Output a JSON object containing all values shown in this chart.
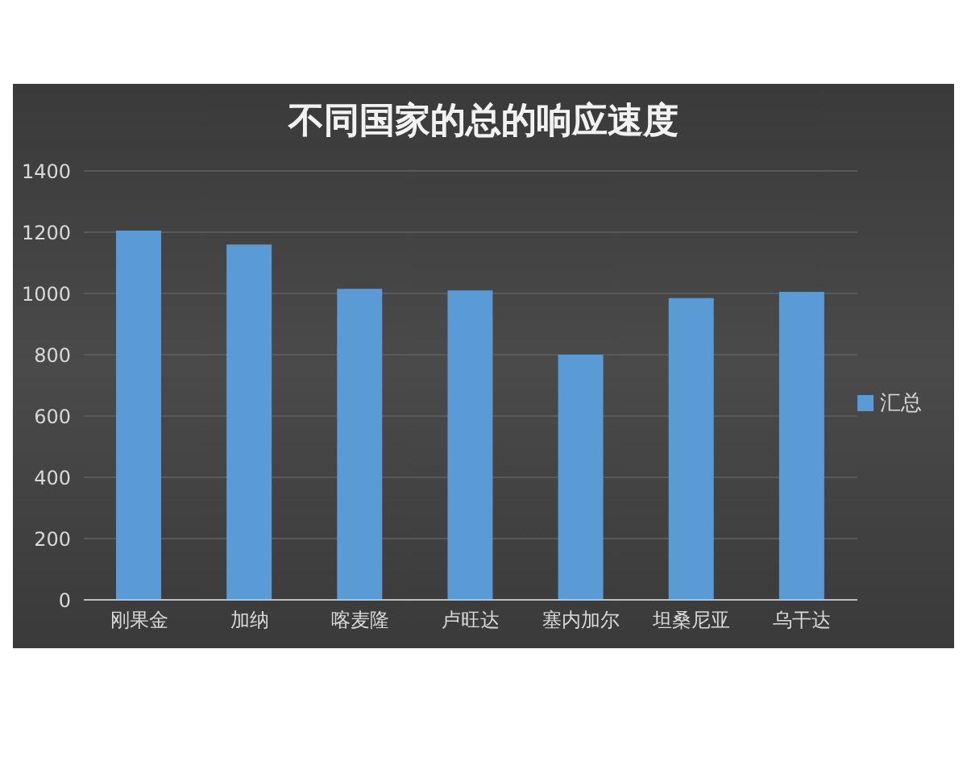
{
  "chart_data": {
    "type": "bar",
    "title": "不同国家的总的响应速度",
    "categories": [
      "刚果金",
      "加纳",
      "喀麦隆",
      "卢旺达",
      "塞内加尔",
      "坦桑尼亚",
      "乌干达"
    ],
    "series": [
      {
        "name": "汇总",
        "color": "#5b9bd5",
        "values": [
          1205,
          1160,
          1015,
          1010,
          800,
          985,
          1005
        ]
      }
    ],
    "ylim": [
      0,
      1400
    ],
    "yticks": [
      0,
      200,
      400,
      600,
      800,
      1000,
      1200,
      1400
    ],
    "grid": "y",
    "legend": "right"
  }
}
